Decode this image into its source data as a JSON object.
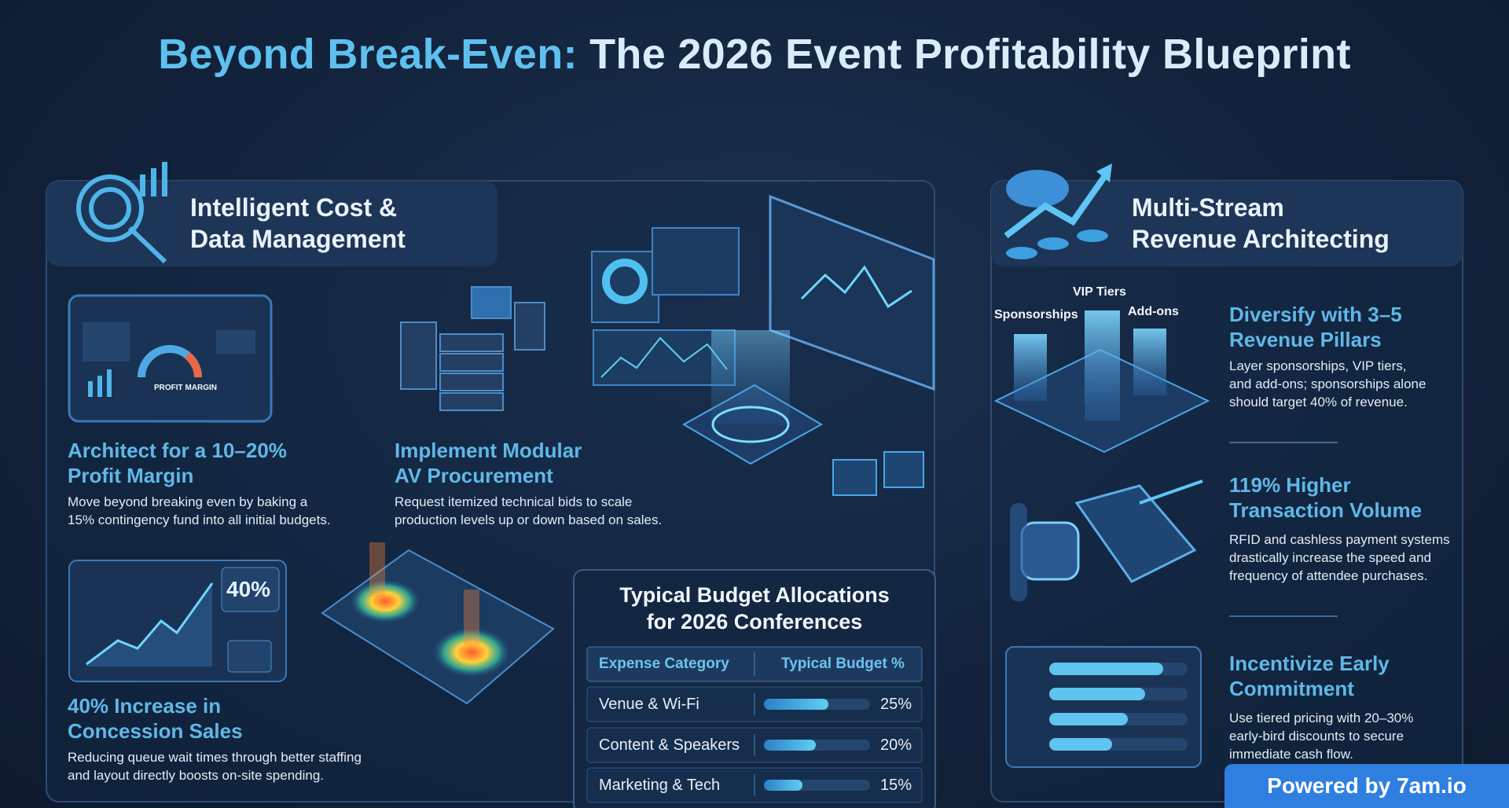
{
  "title": {
    "highlight": "Beyond Break-Even:",
    "rest": "The 2026 Event Profitability Blueprint"
  },
  "left_panel": {
    "heading": [
      "Intelligent Cost &",
      "Data Management"
    ],
    "illustration_labels": {
      "gauge": "PROFIT MARGIN",
      "stat": "40%"
    },
    "items": [
      {
        "title": [
          "Architect for a 10–20%",
          "Profit Margin"
        ],
        "description": [
          "Move beyond breaking even by baking a",
          "15% contingency fund into all initial budgets."
        ]
      },
      {
        "title": [
          "Implement Modular",
          "AV Procurement"
        ],
        "description": [
          "Request itemized technical bids to scale",
          "production levels up or down based on sales."
        ]
      },
      {
        "title": [
          "40% Increase in",
          "Concession Sales"
        ],
        "description": [
          "Reducing queue wait times through better staffing",
          "and layout directly boosts on-site spending."
        ]
      }
    ]
  },
  "budget_table": {
    "title": [
      "Typical Budget Allocations",
      "for 2026 Conferences"
    ],
    "columns": [
      "Expense Category",
      "Typical Budget %"
    ],
    "rows": [
      {
        "category": "Venue & Wi-Fi",
        "percent": 25,
        "percent_label": "25%"
      },
      {
        "category": "Content & Speakers",
        "percent": 20,
        "percent_label": "20%"
      },
      {
        "category": "Marketing & Tech",
        "percent": 15,
        "percent_label": "15%"
      }
    ]
  },
  "right_panel": {
    "heading": [
      "Multi-Stream",
      "Revenue Architecting"
    ],
    "pillar_labels": [
      "Sponsorships",
      "VIP Tiers",
      "Add-ons"
    ],
    "items": [
      {
        "title": [
          "Diversify with 3–5",
          "Revenue Pillars"
        ],
        "description": [
          "Layer sponsorships, VIP tiers,",
          "and add-ons; sponsorships alone",
          "should target 40% of revenue."
        ]
      },
      {
        "title": [
          "119% Higher",
          "Transaction Volume"
        ],
        "description": [
          "RFID and cashless payment systems",
          "drastically increase the speed and",
          "frequency of attendee purchases."
        ]
      },
      {
        "title": [
          "Incentivize Early",
          "Commitment"
        ],
        "description": [
          "Use tiered pricing with 20–30%",
          "early-bird discounts to secure",
          "immediate cash flow."
        ]
      }
    ]
  },
  "badge": "Powered by 7am.io"
}
